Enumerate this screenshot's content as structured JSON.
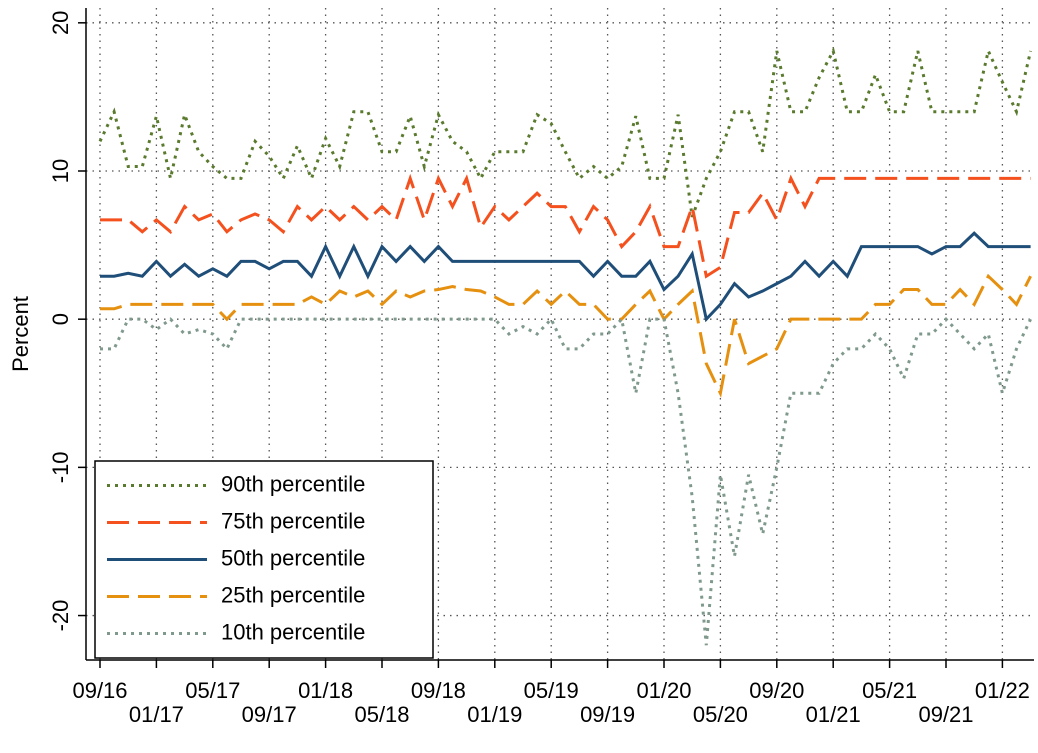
{
  "chart_data": {
    "type": "line",
    "ylabel": "Percent",
    "x": [
      "09/16",
      "10/16",
      "11/16",
      "12/16",
      "01/17",
      "02/17",
      "03/17",
      "04/17",
      "05/17",
      "06/17",
      "07/17",
      "08/17",
      "09/17",
      "10/17",
      "11/17",
      "12/17",
      "01/18",
      "02/18",
      "03/18",
      "04/18",
      "05/18",
      "06/18",
      "07/18",
      "08/18",
      "09/18",
      "10/18",
      "11/18",
      "12/18",
      "01/19",
      "02/19",
      "03/19",
      "04/19",
      "05/19",
      "06/19",
      "07/19",
      "08/19",
      "09/19",
      "10/19",
      "11/19",
      "12/19",
      "01/20",
      "02/20",
      "03/20",
      "04/20",
      "05/20",
      "06/20",
      "07/20",
      "08/20",
      "09/20",
      "10/20",
      "11/20",
      "12/20",
      "01/21",
      "02/21",
      "03/21",
      "04/21",
      "05/21",
      "06/21",
      "07/21",
      "08/21",
      "09/21",
      "10/21",
      "11/21",
      "12/21",
      "01/22",
      "02/22",
      "03/22"
    ],
    "xticks": [
      "09/16",
      "01/17",
      "05/17",
      "09/17",
      "01/18",
      "05/18",
      "09/18",
      "01/19",
      "05/19",
      "09/19",
      "01/20",
      "05/20",
      "09/20",
      "01/21",
      "05/21",
      "09/21",
      "01/22"
    ],
    "ylim": [
      -23,
      21
    ],
    "yticks": [
      -20,
      -10,
      0,
      10,
      20
    ],
    "grid": true,
    "legend": "lower-left",
    "series": [
      {
        "name": "90th percentile",
        "color": "#5a7a2e",
        "dash": "dotted",
        "values": [
          12,
          14,
          10.3,
          10.3,
          13.7,
          9.5,
          13.8,
          11.3,
          10.3,
          9.5,
          9.5,
          12,
          11,
          9.5,
          11.7,
          9.5,
          12.2,
          10.3,
          14,
          14,
          11.3,
          11.3,
          13.7,
          10.3,
          13.8,
          12,
          11.3,
          9.5,
          11.3,
          11.3,
          11.3,
          13.8,
          13.2,
          11.3,
          9.5,
          10.3,
          9.5,
          10.3,
          13.7,
          9.5,
          9.5,
          13.8,
          6.9,
          9.5,
          11.3,
          14,
          14,
          11.3,
          18.1,
          14,
          14,
          16.3,
          18.1,
          14,
          14,
          16.5,
          14,
          14,
          18.1,
          14,
          14,
          14,
          14,
          18.1,
          16,
          14,
          18.1
        ]
      },
      {
        "name": "75th percentile",
        "color": "#f4511e",
        "dash": "dashed",
        "values": [
          6.7,
          6.7,
          6.7,
          5.9,
          6.7,
          5.9,
          7.6,
          6.7,
          7.1,
          5.9,
          6.7,
          7.1,
          6.7,
          5.9,
          7.6,
          6.7,
          7.6,
          6.7,
          7.6,
          6.7,
          7.6,
          6.7,
          9.5,
          6.7,
          9.5,
          7.6,
          9.5,
          6.2,
          7.6,
          6.7,
          7.6,
          8.5,
          7.6,
          7.6,
          5.9,
          7.6,
          6.7,
          4.9,
          5.9,
          7.6,
          4.9,
          4.9,
          7.6,
          2.9,
          3.5,
          7.2,
          7.2,
          8.5,
          6.7,
          9.5,
          7.6,
          9.5,
          9.5,
          9.5,
          9.5,
          9.5,
          9.5,
          9.5,
          9.5,
          9.5,
          9.5,
          9.5,
          9.5,
          9.5,
          9.5,
          9.5,
          9.5
        ]
      },
      {
        "name": "50th percentile",
        "color": "#1f4e79",
        "dash": "solid",
        "values": [
          2.9,
          2.9,
          3.1,
          2.9,
          3.9,
          2.9,
          3.7,
          2.9,
          3.4,
          2.9,
          3.9,
          3.9,
          3.4,
          3.9,
          3.9,
          2.9,
          4.9,
          2.9,
          4.9,
          2.9,
          4.9,
          3.9,
          4.9,
          3.9,
          4.9,
          3.9,
          3.9,
          3.9,
          3.9,
          3.9,
          3.9,
          3.9,
          3.9,
          3.9,
          3.9,
          2.9,
          3.9,
          2.9,
          2.9,
          3.9,
          2.0,
          2.9,
          4.4,
          0,
          1,
          2.4,
          1.5,
          1.9,
          2.4,
          2.9,
          3.9,
          2.9,
          3.9,
          2.9,
          4.9,
          4.9,
          4.9,
          4.9,
          4.9,
          4.4,
          4.9,
          4.9,
          5.8,
          4.9,
          4.9,
          4.9,
          4.9
        ]
      },
      {
        "name": "25th percentile",
        "color": "#e69010",
        "dash": "dashed",
        "values": [
          0.7,
          0.7,
          1,
          1,
          1,
          1,
          1,
          1,
          1,
          0,
          1,
          1,
          1,
          1,
          1,
          1.5,
          1,
          1.9,
          1.5,
          1.9,
          1,
          1.9,
          1.5,
          1.9,
          2,
          2.2,
          2,
          1.9,
          1.5,
          1,
          1,
          1.9,
          1,
          1.9,
          1,
          1,
          0,
          0,
          1,
          1.9,
          0,
          1,
          1.9,
          -3,
          -5,
          0,
          -3,
          -2.5,
          -2,
          0,
          0,
          0,
          0,
          0,
          0,
          1,
          1,
          2,
          2,
          1,
          1,
          2,
          1,
          2.9,
          2,
          1,
          2.9
        ]
      },
      {
        "name": "10th percentile",
        "color": "#7f9a8c",
        "dash": "dotted",
        "values": [
          -2,
          -2,
          0,
          0,
          -0.7,
          0,
          -1,
          -0.7,
          -1,
          -2,
          0,
          0,
          0,
          0,
          0,
          0,
          0,
          0,
          0,
          0,
          0,
          0,
          0,
          0,
          0,
          0,
          0,
          0,
          0,
          -1,
          -0.5,
          -1,
          0,
          -2,
          -2,
          -1,
          -1,
          0,
          -5,
          0,
          0,
          -5,
          -12,
          -22,
          -10.5,
          -16,
          -10.5,
          -14.5,
          -10,
          -5,
          -5,
          -5,
          -3,
          -2,
          -2,
          -1,
          -2,
          -4,
          -1,
          -1,
          0,
          -1,
          -2,
          -1,
          -5,
          -2,
          0
        ]
      }
    ]
  }
}
